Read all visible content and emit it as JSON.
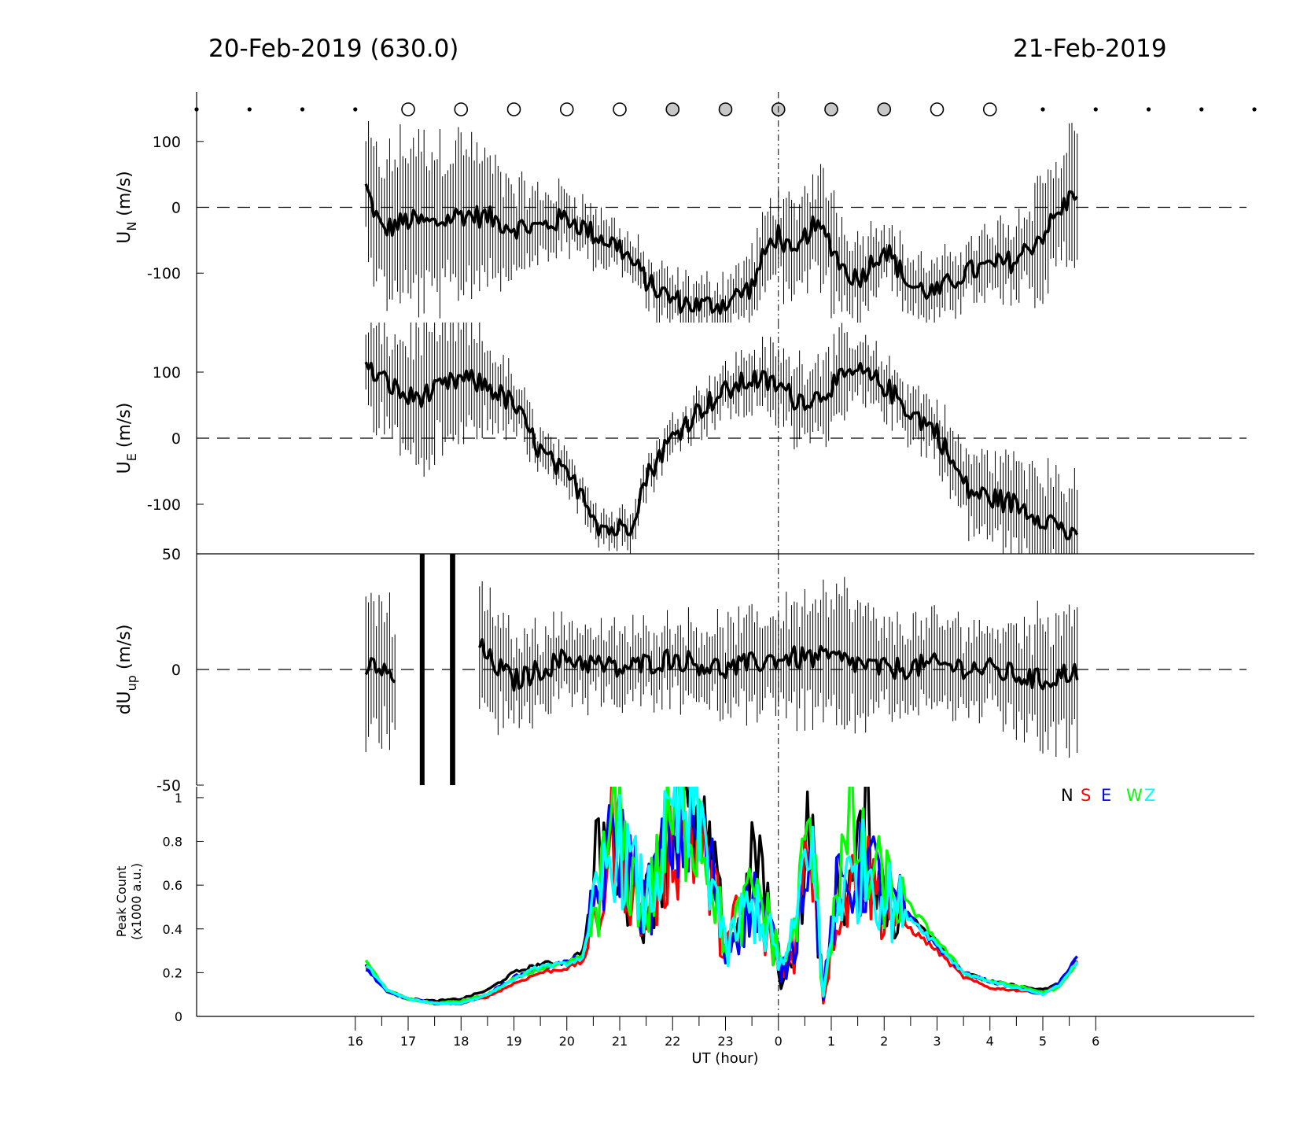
{
  "header": {
    "left_title": "20-Feb-2019 (630.0)",
    "right_title": "21-Feb-2019"
  },
  "colors": {
    "N": "#000000",
    "S": "#ff0000",
    "E": "#0000ff",
    "W": "#00ff00",
    "Z": "#00ffff",
    "circle_open": "#ffffff",
    "circle_grey": "#c8c8c8"
  },
  "chart_data": [
    {
      "type": "scatter",
      "panel": "markers",
      "x": [
        16,
        17,
        18,
        19,
        20,
        21,
        22,
        23,
        24,
        25,
        26,
        27,
        28,
        29,
        30
      ],
      "small_dots_x": [
        13,
        14,
        15,
        16,
        29,
        30,
        31,
        32,
        33
      ],
      "open_circles_x": [
        17,
        18,
        19,
        20,
        21,
        28
      ],
      "grey_circles_x": [
        22,
        23,
        24,
        25,
        26
      ],
      "open_circle_late_x": [
        27
      ]
    },
    {
      "type": "line",
      "panel": "UN",
      "ylabel": "U",
      "ylabel_sub": "N",
      "ylabel_unit": " (m/s)",
      "ylim": [
        -175,
        175
      ],
      "yticks": [
        100,
        0,
        -100
      ],
      "tick_labels": [
        "100",
        "0",
        "-100"
      ],
      "x_start": 16.2,
      "x_end": 29.65,
      "x_step": 0.05,
      "anchors_x": [
        16.2,
        16.5,
        17.0,
        17.5,
        18.0,
        18.5,
        19.0,
        19.5,
        20.0,
        20.5,
        21.0,
        21.3,
        21.6,
        22.0,
        22.5,
        23.0,
        23.5,
        23.8,
        24.0,
        24.3,
        24.6,
        24.9,
        25.2,
        25.5,
        26.0,
        26.5,
        27.0,
        27.5,
        28.0,
        28.5,
        29.0,
        29.3,
        29.65
      ],
      "anchors_y": [
        30,
        -35,
        -20,
        -25,
        -10,
        -15,
        -30,
        -30,
        -15,
        -40,
        -60,
        -90,
        -120,
        -140,
        -150,
        -145,
        -120,
        -60,
        -40,
        -80,
        -30,
        -40,
        -90,
        -110,
        -60,
        -120,
        -130,
        -100,
        -90,
        -80,
        -40,
        -10,
        30
      ],
      "err_anchors_x": [
        16.2,
        17.0,
        18.0,
        19.0,
        20.0,
        21.0,
        23.0,
        24.0,
        25.0,
        26.0,
        27.5,
        28.5,
        29.0,
        29.65
      ],
      "err_anchors": [
        80,
        120,
        110,
        60,
        40,
        30,
        35,
        60,
        80,
        40,
        40,
        60,
        80,
        90
      ]
    },
    {
      "type": "line",
      "panel": "UE",
      "ylabel": "U",
      "ylabel_sub": "E",
      "ylabel_unit": " (m/s)",
      "ylim": [
        -175,
        175
      ],
      "yticks": [
        100,
        0,
        -100
      ],
      "tick_labels": [
        "100",
        "0",
        "-100"
      ],
      "x_start": 16.2,
      "x_end": 29.65,
      "x_step": 0.05,
      "anchors_x": [
        16.2,
        16.5,
        17.0,
        17.5,
        18.0,
        18.5,
        19.0,
        19.5,
        20.0,
        20.3,
        20.6,
        20.9,
        21.2,
        21.5,
        21.8,
        22.2,
        22.6,
        23.0,
        23.5,
        24.0,
        24.3,
        24.7,
        25.0,
        25.5,
        26.0,
        26.5,
        27.0,
        27.3,
        27.6,
        28.0,
        28.5,
        29.0,
        29.3,
        29.65
      ],
      "anchors_y": [
        105,
        90,
        60,
        70,
        90,
        80,
        50,
        -20,
        -60,
        -80,
        -130,
        -140,
        -130,
        -60,
        -20,
        20,
        50,
        70,
        90,
        80,
        60,
        60,
        80,
        100,
        80,
        40,
        10,
        -40,
        -80,
        -90,
        -100,
        -120,
        -130,
        -160
      ],
      "err_anchors_x": [
        16.2,
        17.0,
        17.5,
        18.0,
        19.0,
        20.0,
        21.0,
        22.0,
        23.0,
        24.0,
        25.0,
        26.0,
        27.0,
        28.0,
        29.0,
        29.65
      ],
      "err_anchors": [
        60,
        90,
        100,
        80,
        40,
        25,
        25,
        25,
        35,
        50,
        60,
        35,
        40,
        60,
        70,
        75
      ]
    },
    {
      "type": "line",
      "panel": "dUup",
      "ylabel": "dU",
      "ylabel_sub": "up",
      "ylabel_unit": " (m/s)",
      "ylim": [
        -50,
        50
      ],
      "yticks": [
        50,
        0,
        -50
      ],
      "tick_labels": [
        "50",
        "0",
        "-50"
      ],
      "x_start": 16.2,
      "x_end": 29.65,
      "x_step": 0.05,
      "gap_start": 16.75,
      "gap_end": 18.35,
      "spikes_x": [
        17.25,
        17.28,
        17.82,
        17.86
      ],
      "anchors_x": [
        16.2,
        16.4,
        16.7,
        18.35,
        18.5,
        19.0,
        20.0,
        21.0,
        22.0,
        23.0,
        24.0,
        25.0,
        26.0,
        27.0,
        28.0,
        29.0,
        29.65
      ],
      "anchors_y": [
        0,
        2,
        -5,
        10,
        5,
        -5,
        5,
        0,
        5,
        0,
        5,
        5,
        0,
        2,
        0,
        -5,
        0
      ],
      "err_anchors_x": [
        16.2,
        16.7,
        18.4,
        19.0,
        20.0,
        22.0,
        24.0,
        25.0,
        26.0,
        28.0,
        29.0,
        29.65
      ],
      "err_anchors": [
        30,
        28,
        25,
        18,
        15,
        15,
        20,
        30,
        18,
        18,
        25,
        28
      ]
    },
    {
      "type": "line",
      "panel": "peak",
      "ylabel": "Peak Count",
      "ylabel2": "(x1000 a.u.)",
      "ylim": [
        0,
        1.05
      ],
      "yticks": [
        0,
        0.2,
        0.4,
        0.6,
        0.8,
        1
      ],
      "tick_labels": [
        "0",
        "0.2",
        "0.4",
        "0.6",
        "0.8",
        "1"
      ],
      "xlabel": "UT (hour)",
      "xlim": [
        13,
        33
      ],
      "xticks_major": [
        16,
        17,
        18,
        19,
        20,
        21,
        22,
        23,
        24,
        25,
        26,
        27,
        28,
        29,
        30
      ],
      "xtick_labels": [
        "16",
        "17",
        "18",
        "19",
        "20",
        "21",
        "22",
        "23",
        "0",
        "1",
        "2",
        "3",
        "4",
        "5",
        "6"
      ],
      "legend": [
        "N",
        "S",
        "E",
        "W",
        "Z"
      ],
      "legend_position": "top-right",
      "x_start": 16.2,
      "x_end": 29.65,
      "x_step": 0.05,
      "series": [
        {
          "key": "N",
          "anchors_x": [
            16.2,
            16.6,
            17.0,
            17.5,
            18.0,
            18.5,
            19.0,
            19.5,
            20.0,
            20.3,
            20.6,
            20.9,
            21.2,
            21.5,
            22.0,
            22.5,
            22.8,
            23.0,
            23.3,
            23.6,
            23.9,
            24.1,
            24.3,
            24.6,
            24.85,
            25.1,
            25.4,
            25.7,
            26.0,
            26.5,
            27.0,
            27.5,
            28.0,
            28.5,
            29.0,
            29.3,
            29.65
          ],
          "anchors_y": [
            0.23,
            0.12,
            0.08,
            0.07,
            0.08,
            0.12,
            0.2,
            0.24,
            0.25,
            0.3,
            0.75,
            0.8,
            0.6,
            0.5,
            0.9,
            0.85,
            0.6,
            0.35,
            0.4,
            0.8,
            0.3,
            0.15,
            0.35,
            0.9,
            0.08,
            0.55,
            0.6,
            0.9,
            0.55,
            0.45,
            0.35,
            0.2,
            0.16,
            0.14,
            0.12,
            0.15,
            0.26
          ]
        },
        {
          "key": "S",
          "anchors_x": [
            16.2,
            16.6,
            17.0,
            17.5,
            18.0,
            18.5,
            19.0,
            19.5,
            20.0,
            20.3,
            20.6,
            20.9,
            21.2,
            21.5,
            22.0,
            22.5,
            22.8,
            23.0,
            23.3,
            23.6,
            23.9,
            24.1,
            24.3,
            24.6,
            24.85,
            25.1,
            25.4,
            25.7,
            26.0,
            26.5,
            27.0,
            27.5,
            28.0,
            28.5,
            29.0,
            29.3,
            29.65
          ],
          "anchors_y": [
            0.23,
            0.12,
            0.08,
            0.06,
            0.06,
            0.09,
            0.15,
            0.2,
            0.22,
            0.25,
            0.45,
            0.9,
            0.6,
            0.45,
            0.8,
            0.8,
            0.55,
            0.3,
            0.5,
            0.4,
            0.3,
            0.2,
            0.3,
            0.9,
            0.08,
            0.5,
            0.6,
            0.65,
            0.5,
            0.4,
            0.3,
            0.18,
            0.13,
            0.12,
            0.11,
            0.14,
            0.25
          ]
        },
        {
          "key": "E",
          "anchors_x": [
            16.2,
            16.6,
            17.0,
            17.5,
            18.0,
            18.5,
            19.0,
            19.5,
            20.0,
            20.3,
            20.6,
            20.9,
            21.2,
            21.5,
            22.0,
            22.5,
            22.8,
            23.0,
            23.3,
            23.6,
            23.9,
            24.1,
            24.3,
            24.6,
            24.85,
            25.1,
            25.4,
            25.7,
            26.0,
            26.5,
            27.0,
            27.5,
            28.0,
            28.5,
            29.0,
            29.3,
            29.65
          ],
          "anchors_y": [
            0.22,
            0.11,
            0.08,
            0.06,
            0.06,
            0.1,
            0.18,
            0.22,
            0.25,
            0.28,
            0.6,
            0.8,
            0.7,
            0.5,
            0.85,
            0.85,
            0.6,
            0.3,
            0.45,
            0.55,
            0.35,
            0.2,
            0.35,
            0.9,
            0.1,
            0.55,
            0.62,
            0.7,
            0.55,
            0.45,
            0.32,
            0.2,
            0.16,
            0.13,
            0.1,
            0.15,
            0.28
          ]
        },
        {
          "key": "W",
          "anchors_x": [
            16.2,
            16.6,
            17.0,
            17.5,
            18.0,
            18.5,
            19.0,
            19.5,
            20.0,
            20.3,
            20.6,
            20.9,
            21.2,
            21.5,
            22.0,
            22.5,
            22.8,
            23.0,
            23.3,
            23.6,
            23.9,
            24.1,
            24.3,
            24.6,
            24.85,
            25.1,
            25.4,
            25.7,
            26.0,
            26.5,
            27.0,
            27.5,
            28.0,
            28.5,
            29.0,
            29.3,
            29.65
          ],
          "anchors_y": [
            0.25,
            0.12,
            0.08,
            0.06,
            0.07,
            0.1,
            0.17,
            0.22,
            0.24,
            0.28,
            0.55,
            0.9,
            0.65,
            0.48,
            0.9,
            0.9,
            0.6,
            0.3,
            0.45,
            0.6,
            0.35,
            0.25,
            0.4,
            0.9,
            0.1,
            0.6,
            0.85,
            0.65,
            0.6,
            0.5,
            0.35,
            0.2,
            0.16,
            0.14,
            0.11,
            0.13,
            0.24
          ]
        },
        {
          "key": "Z",
          "anchors_x": [
            16.2,
            16.6,
            17.0,
            17.5,
            18.0,
            18.5,
            19.0,
            19.5,
            20.0,
            20.3,
            20.6,
            20.9,
            21.2,
            21.5,
            22.0,
            22.5,
            22.8,
            23.0,
            23.3,
            23.6,
            23.9,
            24.1,
            24.3,
            24.6,
            24.85,
            25.1,
            25.4,
            25.7,
            26.0,
            26.5,
            27.0,
            27.5,
            28.0,
            28.5,
            29.0,
            29.3,
            29.65
          ],
          "anchors_y": [
            0.24,
            0.12,
            0.08,
            0.06,
            0.06,
            0.1,
            0.17,
            0.23,
            0.24,
            0.27,
            0.55,
            0.8,
            0.68,
            0.5,
            0.88,
            0.88,
            0.6,
            0.28,
            0.45,
            0.5,
            0.32,
            0.22,
            0.38,
            0.9,
            0.09,
            0.55,
            0.62,
            0.7,
            0.55,
            0.45,
            0.33,
            0.2,
            0.16,
            0.13,
            0.1,
            0.14,
            0.25
          ]
        }
      ]
    }
  ]
}
